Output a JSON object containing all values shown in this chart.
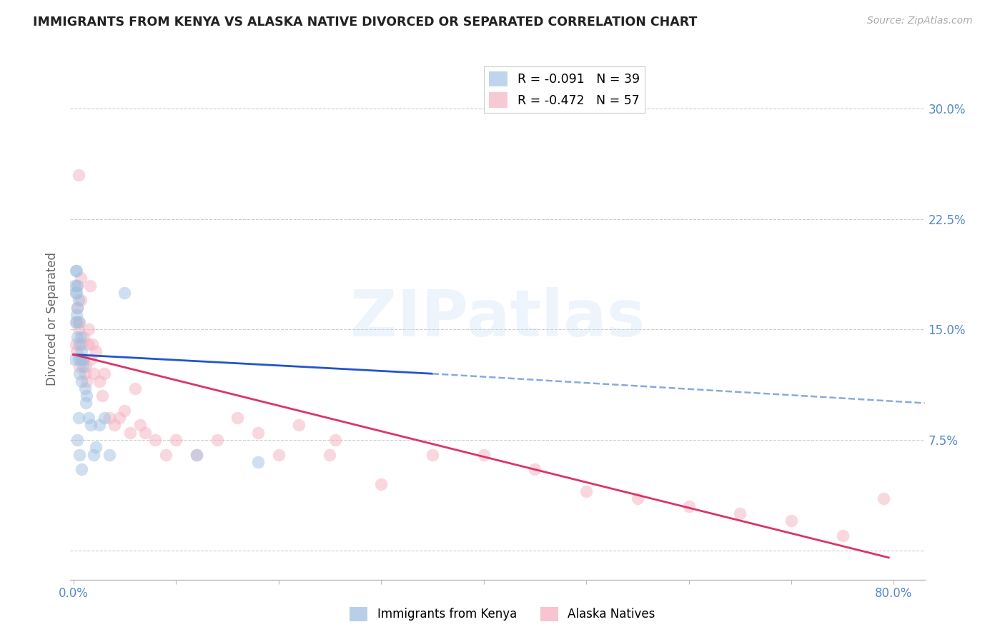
{
  "title": "IMMIGRANTS FROM KENYA VS ALASKA NATIVE DIVORCED OR SEPARATED CORRELATION CHART",
  "source": "Source: ZipAtlas.com",
  "ylabel": "Divorced or Separated",
  "xlim": [
    -0.003,
    0.83
  ],
  "ylim": [
    -0.02,
    0.335
  ],
  "xlabel_ticks": [
    0.0,
    0.1,
    0.2,
    0.3,
    0.4,
    0.5,
    0.6,
    0.7,
    0.8
  ],
  "xlabel_labels": [
    "0.0%",
    "",
    "",
    "",
    "",
    "",
    "",
    "",
    "80.0%"
  ],
  "yticks_right": [
    0.0,
    0.075,
    0.15,
    0.225,
    0.3
  ],
  "ytick_labels_right": [
    "",
    "7.5%",
    "15.0%",
    "22.5%",
    "30.0%"
  ],
  "legend_entries": [
    {
      "label": "R = -0.091   N = 39",
      "color": "#a8c8e8"
    },
    {
      "label": "R = -0.472   N = 57",
      "color": "#f5b8c8"
    }
  ],
  "blue_color": "#a0c0e0",
  "pink_color": "#f5b0c0",
  "blue_line_color": "#2255cc",
  "pink_line_color": "#dd3366",
  "dashed_line_color": "#88aadd",
  "watermark": "ZIPatlas",
  "blue_scatter_x": [
    0.001,
    0.001,
    0.002,
    0.002,
    0.002,
    0.003,
    0.003,
    0.003,
    0.004,
    0.004,
    0.004,
    0.005,
    0.005,
    0.005,
    0.006,
    0.006,
    0.007,
    0.007,
    0.008,
    0.008,
    0.009,
    0.01,
    0.011,
    0.012,
    0.013,
    0.015,
    0.017,
    0.02,
    0.022,
    0.025,
    0.03,
    0.035,
    0.05,
    0.12,
    0.18,
    0.004,
    0.005,
    0.006,
    0.008
  ],
  "blue_scatter_y": [
    0.13,
    0.18,
    0.155,
    0.175,
    0.19,
    0.16,
    0.175,
    0.19,
    0.145,
    0.165,
    0.18,
    0.13,
    0.155,
    0.17,
    0.12,
    0.14,
    0.13,
    0.145,
    0.115,
    0.135,
    0.125,
    0.13,
    0.11,
    0.1,
    0.105,
    0.09,
    0.085,
    0.065,
    0.07,
    0.085,
    0.09,
    0.065,
    0.175,
    0.065,
    0.06,
    0.075,
    0.09,
    0.065,
    0.055
  ],
  "pink_scatter_x": [
    0.002,
    0.003,
    0.003,
    0.004,
    0.004,
    0.005,
    0.005,
    0.006,
    0.006,
    0.007,
    0.007,
    0.008,
    0.009,
    0.01,
    0.011,
    0.012,
    0.013,
    0.014,
    0.015,
    0.016,
    0.017,
    0.018,
    0.02,
    0.022,
    0.025,
    0.028,
    0.03,
    0.035,
    0.04,
    0.045,
    0.05,
    0.055,
    0.06,
    0.065,
    0.07,
    0.08,
    0.09,
    0.1,
    0.12,
    0.14,
    0.16,
    0.18,
    0.2,
    0.22,
    0.25,
    0.3,
    0.35,
    0.4,
    0.45,
    0.5,
    0.55,
    0.6,
    0.65,
    0.7,
    0.75,
    0.79,
    0.255
  ],
  "pink_scatter_y": [
    0.14,
    0.135,
    0.155,
    0.165,
    0.18,
    0.15,
    0.255,
    0.125,
    0.155,
    0.17,
    0.185,
    0.14,
    0.13,
    0.145,
    0.12,
    0.125,
    0.115,
    0.14,
    0.15,
    0.18,
    0.13,
    0.14,
    0.12,
    0.135,
    0.115,
    0.105,
    0.12,
    0.09,
    0.085,
    0.09,
    0.095,
    0.08,
    0.11,
    0.085,
    0.08,
    0.075,
    0.065,
    0.075,
    0.065,
    0.075,
    0.09,
    0.08,
    0.065,
    0.085,
    0.065,
    0.045,
    0.065,
    0.065,
    0.055,
    0.04,
    0.035,
    0.03,
    0.025,
    0.02,
    0.01,
    0.035,
    0.075
  ],
  "blue_line_x0": 0.0,
  "blue_line_x1": 0.35,
  "blue_line_y0": 0.133,
  "blue_line_y1": 0.12,
  "pink_line_x0": 0.0,
  "pink_line_x1": 0.795,
  "pink_line_y0": 0.133,
  "pink_line_y1": -0.005,
  "dashed_line_x0": 0.35,
  "dashed_line_x1": 0.83,
  "dashed_line_y0": 0.12,
  "dashed_line_y1": 0.1,
  "grid_color": "#cccccc",
  "title_color": "#222222",
  "axis_label_color": "#666666",
  "right_axis_color": "#5588cc",
  "background_color": "#ffffff"
}
